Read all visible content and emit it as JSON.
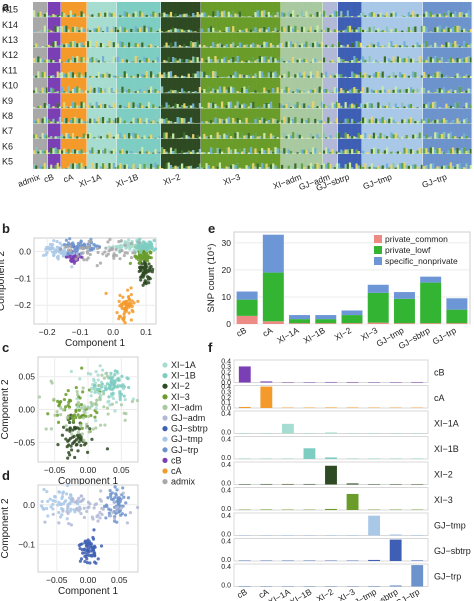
{
  "panels": {
    "a": "a",
    "b": "b",
    "c": "c",
    "d": "d",
    "e": "e",
    "f": "f"
  },
  "colors": {
    "XI-1A": "#a7dcd0",
    "XI-1B": "#7ecdc2",
    "XI-2": "#2e4a22",
    "XI-3": "#6a9c2a",
    "XI-adm": "#a9c9a0",
    "GJ-adm": "#b2b9d6",
    "GJ-sbtrp": "#3e5fb3",
    "GJ-tmp": "#a9c8e8",
    "GJ-trp": "#6d93cc",
    "cB": "#7b3fb5",
    "cA": "#f39a2b",
    "admix": "#a8a8a8",
    "private_common": "#ee8a84",
    "private_lowf": "#33b533",
    "specific_nonprivate": "#6d96d6"
  },
  "panel_a": {
    "k_labels": [
      "K15",
      "K14",
      "K13",
      "K12",
      "K11",
      "K10",
      "K9",
      "K8",
      "K7",
      "K6",
      "K5"
    ],
    "groups": [
      "admix",
      "cB",
      "cA",
      "XI−1A",
      "XI−1B",
      "XI−2",
      "XI−3",
      "XI−adm",
      "GJ−adm",
      "GJ−sbtrp",
      "GJ−tmp",
      "GJ−trp"
    ]
  },
  "chart_data": [
    {
      "type": "scatter",
      "panel": "b",
      "xlabel": "Component 1",
      "ylabel": "Component 2",
      "xticks": [
        "−0.2",
        "−0.1",
        "0.0",
        "0.1"
      ],
      "yticks": [
        "−0.2",
        "−0.1",
        "0.0"
      ],
      "xlim": [
        -0.24,
        0.13
      ],
      "ylim": [
        -0.27,
        0.05
      ],
      "clusters": [
        {
          "name": "cA",
          "cx": 0.04,
          "cy": -0.2,
          "sx": 0.015,
          "sy": 0.03
        },
        {
          "name": "cB",
          "cx": -0.12,
          "cy": -0.02,
          "sx": 0.01,
          "sy": 0.012
        },
        {
          "name": "XI-2",
          "cx": 0.1,
          "cy": -0.07,
          "sx": 0.012,
          "sy": 0.03
        },
        {
          "name": "XI-3",
          "cx": 0.09,
          "cy": -0.01,
          "sx": 0.015,
          "sy": 0.015
        },
        {
          "name": "XI-1A",
          "cx": 0.05,
          "cy": 0.02,
          "sx": 0.03,
          "sy": 0.01
        },
        {
          "name": "XI-1B",
          "cx": 0.1,
          "cy": 0.02,
          "sx": 0.015,
          "sy": 0.01
        },
        {
          "name": "GJ-tmp",
          "cx": -0.17,
          "cy": 0.0,
          "sx": 0.03,
          "sy": 0.015
        },
        {
          "name": "GJ-trp",
          "cx": -0.1,
          "cy": 0.02,
          "sx": 0.03,
          "sy": 0.012
        },
        {
          "name": "admix",
          "cx": -0.03,
          "cy": 0.0,
          "sx": 0.06,
          "sy": 0.02
        }
      ]
    },
    {
      "type": "scatter",
      "panel": "c",
      "xlabel": "Component 1",
      "ylabel": "Component 2",
      "xticks": [
        "−0.05",
        "0.00",
        "0.05"
      ],
      "yticks": [
        "−0.05",
        "0.00",
        "0.05"
      ],
      "xlim": [
        -0.075,
        0.075
      ],
      "ylim": [
        -0.08,
        0.08
      ],
      "clusters": [
        {
          "name": "XI-2",
          "cx": -0.02,
          "cy": -0.04,
          "sx": 0.012,
          "sy": 0.015
        },
        {
          "name": "XI-3",
          "cx": -0.02,
          "cy": 0.005,
          "sx": 0.02,
          "sy": 0.02
        },
        {
          "name": "XI-1A",
          "cx": 0.02,
          "cy": 0.03,
          "sx": 0.02,
          "sy": 0.02
        },
        {
          "name": "XI-1B",
          "cx": 0.04,
          "cy": 0.04,
          "sx": 0.012,
          "sy": 0.012
        },
        {
          "name": "XI-adm",
          "cx": 0.0,
          "cy": 0.0,
          "sx": 0.03,
          "sy": 0.025
        }
      ]
    },
    {
      "type": "scatter",
      "panel": "d",
      "xlabel": "Component 1",
      "ylabel": "Component 2",
      "xticks": [
        "−0.05",
        "0.00",
        "0.05"
      ],
      "yticks": [
        "−0.1",
        "0.0"
      ],
      "xlim": [
        -0.08,
        0.08
      ],
      "ylim": [
        -0.17,
        0.05
      ],
      "clusters": [
        {
          "name": "GJ-sbtrp",
          "cx": 0.0,
          "cy": -0.11,
          "sx": 0.008,
          "sy": 0.02
        },
        {
          "name": "GJ-tmp",
          "cx": -0.04,
          "cy": 0.0,
          "sx": 0.015,
          "sy": 0.018
        },
        {
          "name": "GJ-trp",
          "cx": 0.045,
          "cy": 0.0,
          "sx": 0.01,
          "sy": 0.02
        },
        {
          "name": "GJ-adm",
          "cx": 0.0,
          "cy": -0.01,
          "sx": 0.035,
          "sy": 0.02
        }
      ]
    },
    {
      "type": "bar",
      "panel": "e",
      "stacked": true,
      "ylabel": "SNP count (10⁴)",
      "categories": [
        "cB",
        "cA",
        "XI−1A",
        "XI−1B",
        "XI−2",
        "XI−3",
        "GJ−tmp",
        "GJ−sbtrp",
        "GJ−trp"
      ],
      "yticks": [
        "0",
        "10",
        "20",
        "30"
      ],
      "ylim": [
        0,
        34
      ],
      "legend": "top-right",
      "series": [
        {
          "name": "private_common",
          "key": "private_common",
          "values": [
            3,
            1,
            0.3,
            0.3,
            0.3,
            0.5,
            0.3,
            0.3,
            0.3
          ]
        },
        {
          "name": "private_lowf",
          "key": "private_lowf",
          "values": [
            6,
            18,
            1.5,
            1.5,
            3,
            11,
            9,
            15,
            5
          ]
        },
        {
          "name": "specific_nonprivate",
          "key": "specific_nonprivate",
          "values": [
            3,
            14,
            1.5,
            1.5,
            1.7,
            3,
            2.5,
            2.2,
            4.2
          ]
        }
      ]
    },
    {
      "type": "bar",
      "panel": "f",
      "categories": [
        "cB",
        "cA",
        "XI−1A",
        "XI−1B",
        "XI−2",
        "XI−3",
        "GJ−tmp",
        "GJ−sbtrp",
        "GJ−trp"
      ],
      "yticks": [
        "0.0",
        "0.1",
        "0.2",
        "0.3",
        "0.4"
      ],
      "ylim": [
        0,
        0.42
      ],
      "rows": [
        {
          "label": "cB",
          "key": "cB",
          "values": [
            0.3,
            0.02,
            0,
            0,
            0.01,
            0.01,
            0,
            0,
            0.01
          ]
        },
        {
          "label": "cA",
          "key": "cA",
          "values": [
            0.02,
            0.4,
            0,
            0,
            0.01,
            0.01,
            0,
            0,
            0
          ]
        },
        {
          "label": "XI−1A",
          "key": "XI-1A",
          "values": [
            0,
            0,
            0.18,
            0,
            0.02,
            0,
            0,
            0,
            0
          ]
        },
        {
          "label": "XI−1B",
          "key": "XI-1B",
          "values": [
            0,
            0,
            0,
            0.2,
            0.03,
            0,
            0,
            0,
            0
          ]
        },
        {
          "label": "XI−2",
          "key": "XI-2",
          "values": [
            0,
            0.01,
            0.01,
            0.01,
            0.35,
            0.02,
            0,
            0,
            0
          ]
        },
        {
          "label": "XI−3",
          "key": "XI-3",
          "values": [
            0,
            0.01,
            0,
            0,
            0.02,
            0.3,
            0,
            0,
            0
          ]
        },
        {
          "label": "GJ−tmp",
          "key": "GJ-tmp",
          "values": [
            0,
            0,
            0,
            0,
            0,
            0,
            0.37,
            0.02,
            0.01
          ]
        },
        {
          "label": "GJ−sbtrp",
          "key": "GJ-sbtrp",
          "values": [
            0,
            0,
            0,
            0,
            0,
            0,
            0.02,
            0.4,
            0.01
          ]
        },
        {
          "label": "GJ−trp",
          "key": "GJ-trp",
          "values": [
            0.01,
            0,
            0,
            0,
            0,
            0,
            0.01,
            0.02,
            0.4
          ]
        }
      ]
    }
  ],
  "legend_c": [
    "XI−1A",
    "XI−1B",
    "XI−2",
    "XI−3",
    "XI−adm",
    "GJ−adm",
    "GJ−sbtrp",
    "GJ−tmp",
    "GJ−trp",
    "cB",
    "cA",
    "admix"
  ],
  "legend_c_keys": [
    "XI-1A",
    "XI-1B",
    "XI-2",
    "XI-3",
    "XI-adm",
    "GJ-adm",
    "GJ-sbtrp",
    "GJ-tmp",
    "GJ-trp",
    "cB",
    "cA",
    "admix"
  ]
}
